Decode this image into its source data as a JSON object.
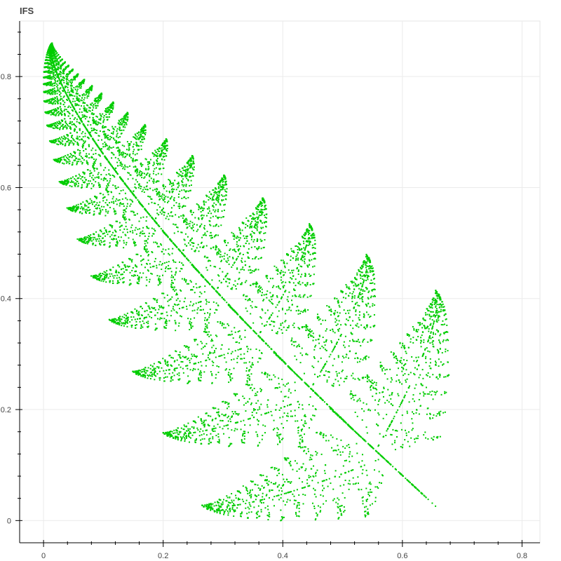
{
  "chart_data": {
    "type": "scatter",
    "title": "IFS",
    "xlabel": "",
    "ylabel": "",
    "xlim": [
      -0.04,
      0.83
    ],
    "ylim": [
      -0.04,
      0.9
    ],
    "x_ticks": [
      0,
      0.2,
      0.4,
      0.6,
      0.8
    ],
    "x_tick_labels": [
      "0",
      "0.2",
      "0.4",
      "0.6",
      "0.8"
    ],
    "y_ticks": [
      0,
      0.2,
      0.4,
      0.6,
      0.8
    ],
    "y_tick_labels": [
      "0",
      "0.2",
      "0.4",
      "0.6",
      "0.8"
    ],
    "grid": true,
    "marker_color": "#00cc00",
    "series": [
      {
        "ifs_maps": [
          {
            "a": 0.0,
            "b": 0.0,
            "c": 0.0,
            "d": 0.25,
            "e": 0.0,
            "f": -0.14,
            "p": 0.02
          },
          {
            "a": 0.85,
            "b": 0.02,
            "c": -0.02,
            "d": 0.83,
            "e": 0.0,
            "f": 1.0,
            "p": 0.84
          },
          {
            "a": 0.09,
            "b": -0.28,
            "c": 0.3,
            "d": 0.11,
            "e": 0.0,
            "f": 0.6,
            "p": 0.07
          },
          {
            "a": -0.09,
            "b": 0.28,
            "c": 0.3,
            "d": 0.09,
            "e": 0.0,
            "f": 0.7,
            "p": 0.07
          }
        ],
        "rotation_deg": 45
      }
    ]
  }
}
